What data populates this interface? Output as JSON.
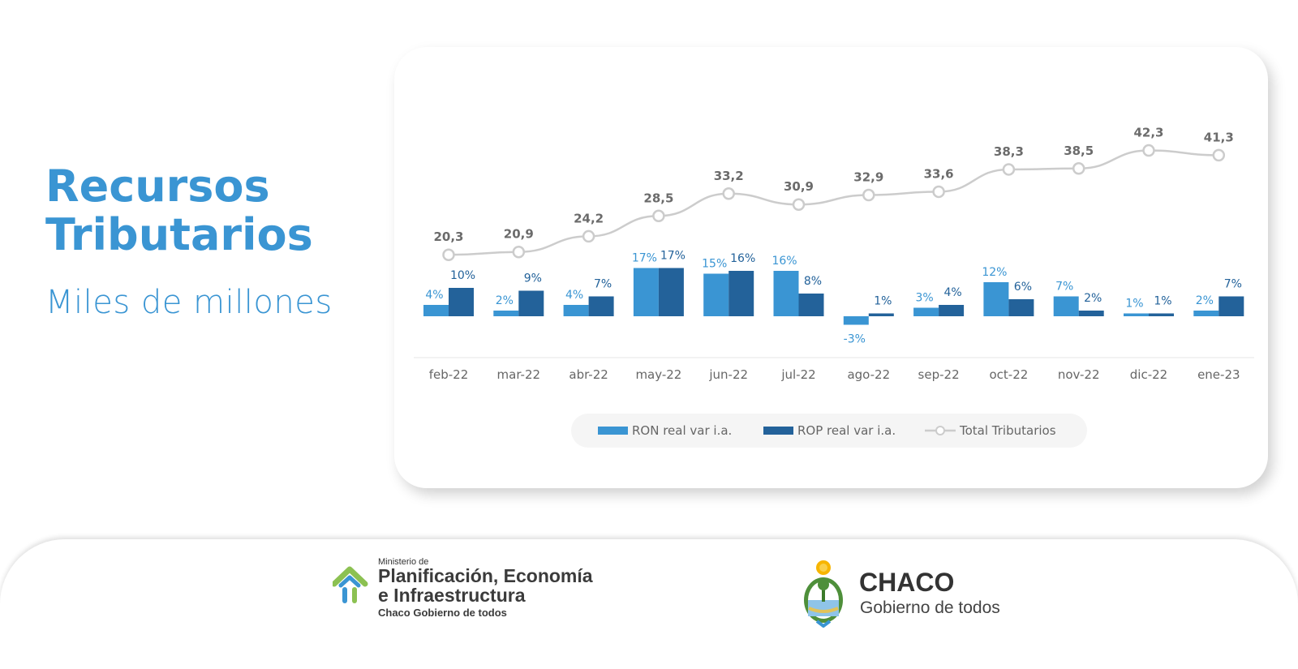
{
  "header": {
    "title_line1": "Recursos",
    "title_line2": "Tributarios",
    "subtitle": "Miles de millones"
  },
  "colors": {
    "accent": "#3a95d3",
    "ron": "#3a95d3",
    "rop": "#23629a",
    "total_line": "#cccccc"
  },
  "chart_data": {
    "type": "bar",
    "categories": [
      "feb-22",
      "mar-22",
      "abr-22",
      "may-22",
      "jun-22",
      "jul-22",
      "ago-22",
      "sep-22",
      "oct-22",
      "nov-22",
      "dic-22",
      "ene-23"
    ],
    "series": [
      {
        "name": "RON real var i.a.",
        "type": "bar",
        "values": [
          4,
          2,
          4,
          17,
          15,
          16,
          -3,
          3,
          12,
          7,
          1,
          2
        ],
        "labels": [
          "4%",
          "2%",
          "4%",
          "17%",
          "15%",
          "16%",
          "-3%",
          "3%",
          "12%",
          "7%",
          "1%",
          "2%"
        ]
      },
      {
        "name": "ROP real var i.a.",
        "type": "bar",
        "values": [
          10,
          9,
          7,
          17,
          16,
          8,
          1,
          4,
          6,
          2,
          1,
          7
        ],
        "labels": [
          "10%",
          "9%",
          "7%",
          "17%",
          "16%",
          "8%",
          "1%",
          "4%",
          "6%",
          "2%",
          "1%",
          "7%"
        ]
      },
      {
        "name": "Total Tributarios",
        "type": "line",
        "values": [
          20.3,
          20.9,
          24.2,
          28.5,
          33.2,
          30.9,
          32.9,
          33.6,
          38.3,
          38.5,
          42.3,
          41.3
        ],
        "labels": [
          "20,3",
          "20,9",
          "24,2",
          "28,5",
          "33,2",
          "30,9",
          "32,9",
          "33,6",
          "38,3",
          "38,5",
          "42,3",
          "41,3"
        ]
      }
    ],
    "legend": {
      "position": "bottom"
    },
    "grid": false
  },
  "footer": {
    "ministry_small": "Ministerio de",
    "ministry_line1": "Planificación, Economía",
    "ministry_line2": "e Infraestructura",
    "ministry_tag": "Chaco Gobierno de todos",
    "province_name": "CHACO",
    "province_motto": "Gobierno de todos"
  }
}
